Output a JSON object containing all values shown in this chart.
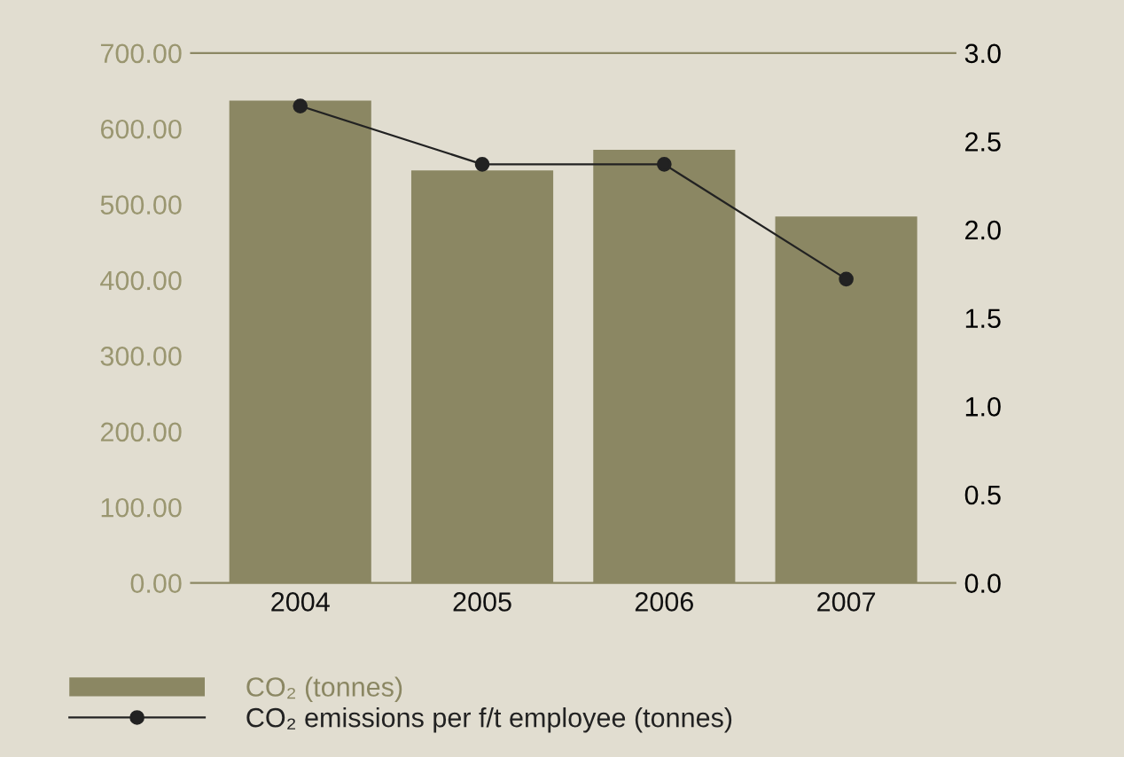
{
  "chart_data": {
    "type": "bar",
    "categories": [
      "2004",
      "2005",
      "2006",
      "2007"
    ],
    "series": [
      {
        "name": "CO₂ (tonnes)",
        "color": "#8b8763",
        "values": [
          637,
          545,
          572,
          484
        ]
      },
      {
        "name": "CO₂ emissions per f/t employee (tonnes)",
        "type": "line",
        "axis": "y2",
        "color": "#222222",
        "marker": "circle",
        "values": [
          2.7,
          2.37,
          2.37,
          1.72
        ]
      }
    ],
    "ylim": [
      0,
      700
    ],
    "yticks": [
      {
        "value": 0,
        "label": "0.00"
      },
      {
        "value": 100,
        "label": "100.00"
      },
      {
        "value": 200,
        "label": "200.00"
      },
      {
        "value": 300,
        "label": "300.00"
      },
      {
        "value": 400,
        "label": "400.00"
      },
      {
        "value": 500,
        "label": "500.00"
      },
      {
        "value": 600,
        "label": "600.00"
      },
      {
        "value": 700,
        "label": "700.00"
      }
    ],
    "y2lim": [
      0,
      3
    ],
    "y2ticks": [
      {
        "value": 0,
        "label": "0.0"
      },
      {
        "value": 0.5,
        "label": "0.5"
      },
      {
        "value": 1,
        "label": "1.0"
      },
      {
        "value": 1.5,
        "label": "1.5"
      },
      {
        "value": 2,
        "label": "2.0"
      },
      {
        "value": 2.5,
        "label": "2.5"
      },
      {
        "value": 3,
        "label": "3.0"
      }
    ],
    "grid": false,
    "legend": "bottom"
  }
}
